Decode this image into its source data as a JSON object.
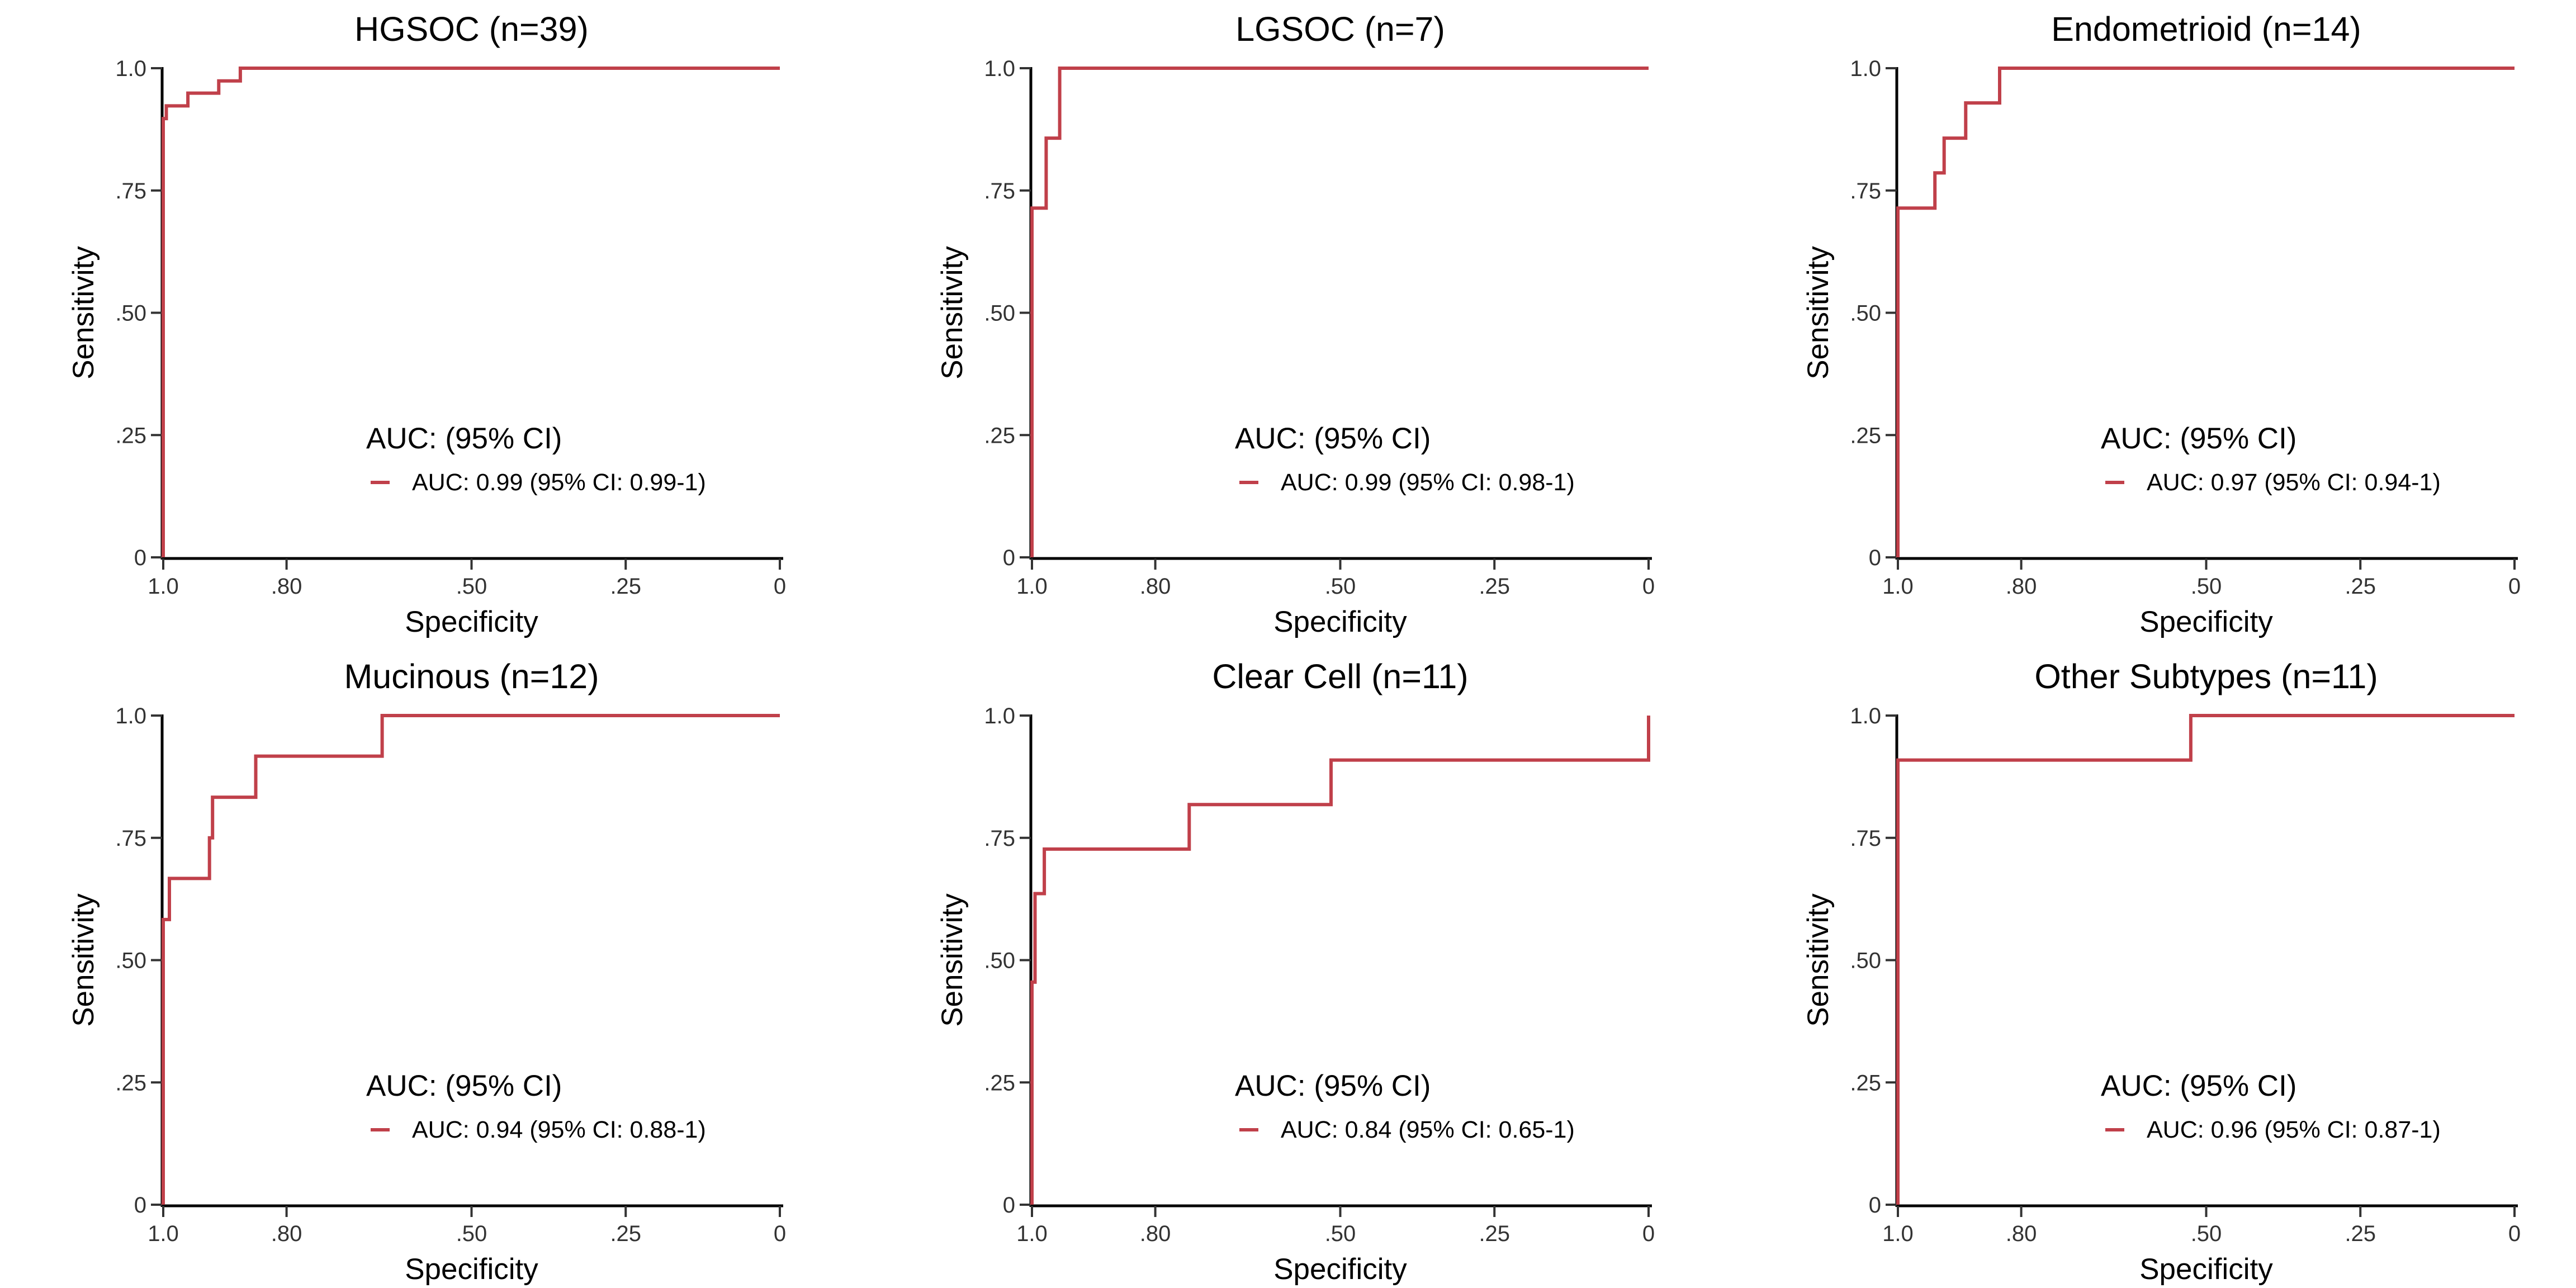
{
  "chart_data": [
    {
      "type": "line",
      "title": "HGSOC (n=39)",
      "xlabel": "Specificity",
      "ylabel": "Sensitivity",
      "x_reversed": true,
      "xlim": [
        1,
        0
      ],
      "ylim": [
        0,
        1
      ],
      "x_ticks": [
        1.0,
        0.8,
        0.5,
        0.25,
        0
      ],
      "x_tick_labels": [
        "1.0",
        ".80",
        ".50",
        ".25",
        "0"
      ],
      "y_ticks": [
        0,
        0.25,
        0.5,
        0.75,
        1.0
      ],
      "y_tick_labels": [
        "0",
        ".25",
        ".50",
        ".75",
        "1.0"
      ],
      "grid": false,
      "legend": {
        "title": "AUC: (95% CI)",
        "position": "bottom-center"
      },
      "series": [
        {
          "name": "AUC: 0.99 (95% CI: 0.99-1)",
          "color": "#C0404A",
          "specificity": [
            1.0,
            1.0,
            0.995,
            0.995,
            0.96,
            0.96,
            0.91,
            0.91,
            0.875,
            0.875,
            0.0
          ],
          "sensitivity": [
            0.0,
            0.897,
            0.897,
            0.923,
            0.923,
            0.949,
            0.949,
            0.974,
            0.974,
            1.0,
            1.0
          ]
        }
      ]
    },
    {
      "type": "line",
      "title": "LGSOC (n=7)",
      "xlabel": "Specificity",
      "ylabel": "Sensitivity",
      "x_reversed": true,
      "xlim": [
        1,
        0
      ],
      "ylim": [
        0,
        1
      ],
      "x_ticks": [
        1.0,
        0.8,
        0.5,
        0.25,
        0
      ],
      "x_tick_labels": [
        "1.0",
        ".80",
        ".50",
        ".25",
        "0"
      ],
      "y_ticks": [
        0,
        0.25,
        0.5,
        0.75,
        1.0
      ],
      "y_tick_labels": [
        "0",
        ".25",
        ".50",
        ".75",
        "1.0"
      ],
      "grid": false,
      "legend": {
        "title": "AUC: (95% CI)",
        "position": "bottom-center"
      },
      "series": [
        {
          "name": "AUC: 0.99 (95% CI: 0.98-1)",
          "color": "#C0404A",
          "specificity": [
            1.0,
            1.0,
            0.977,
            0.977,
            0.955,
            0.955,
            0.0
          ],
          "sensitivity": [
            0.0,
            0.714,
            0.714,
            0.857,
            0.857,
            1.0,
            1.0
          ]
        }
      ]
    },
    {
      "type": "line",
      "title": "Endometrioid (n=14)",
      "xlabel": "Specificity",
      "ylabel": "Sensitivity",
      "x_reversed": true,
      "xlim": [
        1,
        0
      ],
      "ylim": [
        0,
        1
      ],
      "x_ticks": [
        1.0,
        0.8,
        0.5,
        0.25,
        0
      ],
      "x_tick_labels": [
        "1.0",
        ".80",
        ".50",
        ".25",
        "0"
      ],
      "y_ticks": [
        0,
        0.25,
        0.5,
        0.75,
        1.0
      ],
      "y_tick_labels": [
        "0",
        ".25",
        ".50",
        ".75",
        "1.0"
      ],
      "grid": false,
      "legend": {
        "title": "AUC: (95% CI)",
        "position": "bottom-center"
      },
      "series": [
        {
          "name": "AUC: 0.97 (95% CI: 0.94-1)",
          "color": "#C0404A",
          "specificity": [
            1.0,
            1.0,
            0.94,
            0.94,
            0.925,
            0.925,
            0.89,
            0.89,
            0.835,
            0.835,
            0.0
          ],
          "sensitivity": [
            0.0,
            0.714,
            0.714,
            0.786,
            0.786,
            0.857,
            0.857,
            0.929,
            0.929,
            1.0,
            1.0
          ]
        }
      ]
    },
    {
      "type": "line",
      "title": "Mucinous (n=12)",
      "xlabel": "Specificity",
      "ylabel": "Sensitivity",
      "x_reversed": true,
      "xlim": [
        1,
        0
      ],
      "ylim": [
        0,
        1
      ],
      "x_ticks": [
        1.0,
        0.8,
        0.5,
        0.25,
        0
      ],
      "x_tick_labels": [
        "1.0",
        ".80",
        ".50",
        ".25",
        "0"
      ],
      "y_ticks": [
        0,
        0.25,
        0.5,
        0.75,
        1.0
      ],
      "y_tick_labels": [
        "0",
        ".25",
        ".50",
        ".75",
        "1.0"
      ],
      "grid": false,
      "legend": {
        "title": "AUC: (95% CI)",
        "position": "bottom-center"
      },
      "series": [
        {
          "name": "AUC: 0.94 (95% CI: 0.88-1)",
          "color": "#C0404A",
          "specificity": [
            1.0,
            1.0,
            0.99,
            0.99,
            0.925,
            0.925,
            0.92,
            0.92,
            0.85,
            0.85,
            0.645,
            0.645,
            0.0
          ],
          "sensitivity": [
            0.0,
            0.583,
            0.583,
            0.667,
            0.667,
            0.75,
            0.75,
            0.833,
            0.833,
            0.917,
            0.917,
            1.0,
            1.0
          ]
        }
      ]
    },
    {
      "type": "line",
      "title": "Clear Cell (n=11)",
      "xlabel": "Specificity",
      "ylabel": "Sensitivity",
      "x_reversed": true,
      "xlim": [
        1,
        0
      ],
      "ylim": [
        0,
        1
      ],
      "x_ticks": [
        1.0,
        0.8,
        0.5,
        0.25,
        0
      ],
      "x_tick_labels": [
        "1.0",
        ".80",
        ".50",
        ".25",
        "0"
      ],
      "y_ticks": [
        0,
        0.25,
        0.5,
        0.75,
        1.0
      ],
      "y_tick_labels": [
        "0",
        ".25",
        ".50",
        ".75",
        "1.0"
      ],
      "grid": false,
      "legend": {
        "title": "AUC: (95% CI)",
        "position": "bottom-center"
      },
      "series": [
        {
          "name": "AUC: 0.84 (95% CI: 0.65-1)",
          "color": "#C0404A",
          "specificity": [
            1.0,
            1.0,
            0.995,
            0.995,
            0.98,
            0.98,
            0.745,
            0.745,
            0.515,
            0.515,
            0.0,
            0.0
          ],
          "sensitivity": [
            0.0,
            0.455,
            0.455,
            0.636,
            0.636,
            0.727,
            0.727,
            0.818,
            0.818,
            0.909,
            0.909,
            1.0
          ]
        }
      ]
    },
    {
      "type": "line",
      "title": "Other Subtypes (n=11)",
      "xlabel": "Specificity",
      "ylabel": "Sensitivity",
      "x_reversed": true,
      "xlim": [
        1,
        0
      ],
      "ylim": [
        0,
        1
      ],
      "x_ticks": [
        1.0,
        0.8,
        0.5,
        0.25,
        0
      ],
      "x_tick_labels": [
        "1.0",
        ".80",
        ".50",
        ".25",
        "0"
      ],
      "y_ticks": [
        0,
        0.25,
        0.5,
        0.75,
        1.0
      ],
      "y_tick_labels": [
        "0",
        ".25",
        ".50",
        ".75",
        "1.0"
      ],
      "grid": false,
      "legend": {
        "title": "AUC: (95% CI)",
        "position": "bottom-center"
      },
      "series": [
        {
          "name": "AUC: 0.96 (95% CI: 0.87-1)",
          "color": "#C0404A",
          "specificity": [
            1.0,
            1.0,
            0.525,
            0.525,
            0.0
          ],
          "sensitivity": [
            0.0,
            0.909,
            0.909,
            1.0,
            1.0
          ]
        }
      ]
    }
  ]
}
